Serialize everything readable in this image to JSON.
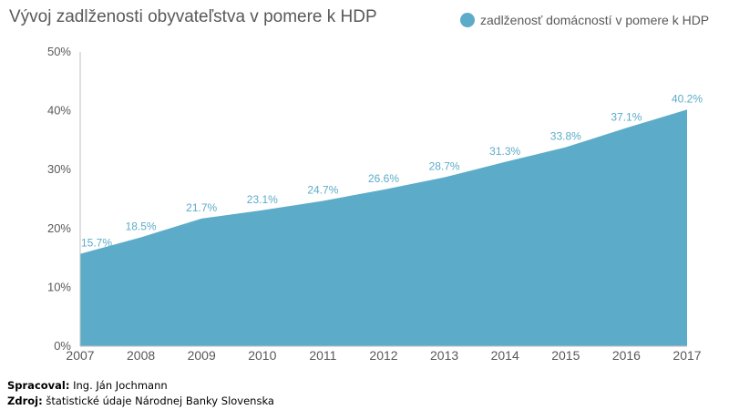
{
  "chart_data": {
    "type": "area",
    "title": "Vývoj zadlženosti obyvateľstva v pomere k HDP",
    "x": [
      "2007",
      "2008",
      "2009",
      "2010",
      "2011",
      "2012",
      "2013",
      "2014",
      "2015",
      "2016",
      "2017"
    ],
    "series": [
      {
        "name": "zadlženosť domácností v pomere k HDP",
        "values": [
          15.7,
          18.5,
          21.7,
          23.1,
          24.7,
          26.6,
          28.7,
          31.3,
          33.8,
          37.1,
          40.2
        ],
        "labels": [
          "15.7%",
          "18.5%",
          "21.7%",
          "23.1%",
          "24.7%",
          "26.6%",
          "28.7%",
          "31.3%",
          "33.8%",
          "37.1%",
          "40.2%"
        ],
        "color": "#5cacc9"
      }
    ],
    "ylim": [
      0,
      50
    ],
    "y_ticks": [
      {
        "value": 0,
        "label": "0%"
      },
      {
        "value": 10,
        "label": "10%"
      },
      {
        "value": 20,
        "label": "20%"
      },
      {
        "value": 30,
        "label": "30%"
      },
      {
        "value": 40,
        "label": "40%"
      },
      {
        "value": 50,
        "label": "50%"
      }
    ],
    "grid": false,
    "legend": "top-right"
  },
  "footer": {
    "processed_label": "Spracoval:",
    "processed_value": "Ing. Ján Jochmann",
    "source_label": "Zdroj:",
    "source_value": "štatistické údaje Národnej Banky Slovenska"
  },
  "colors": {
    "area": "#5cacc9",
    "data_label": "#5cacc9",
    "axis_text": "#595959",
    "axis_line": "#bfbfbf"
  }
}
